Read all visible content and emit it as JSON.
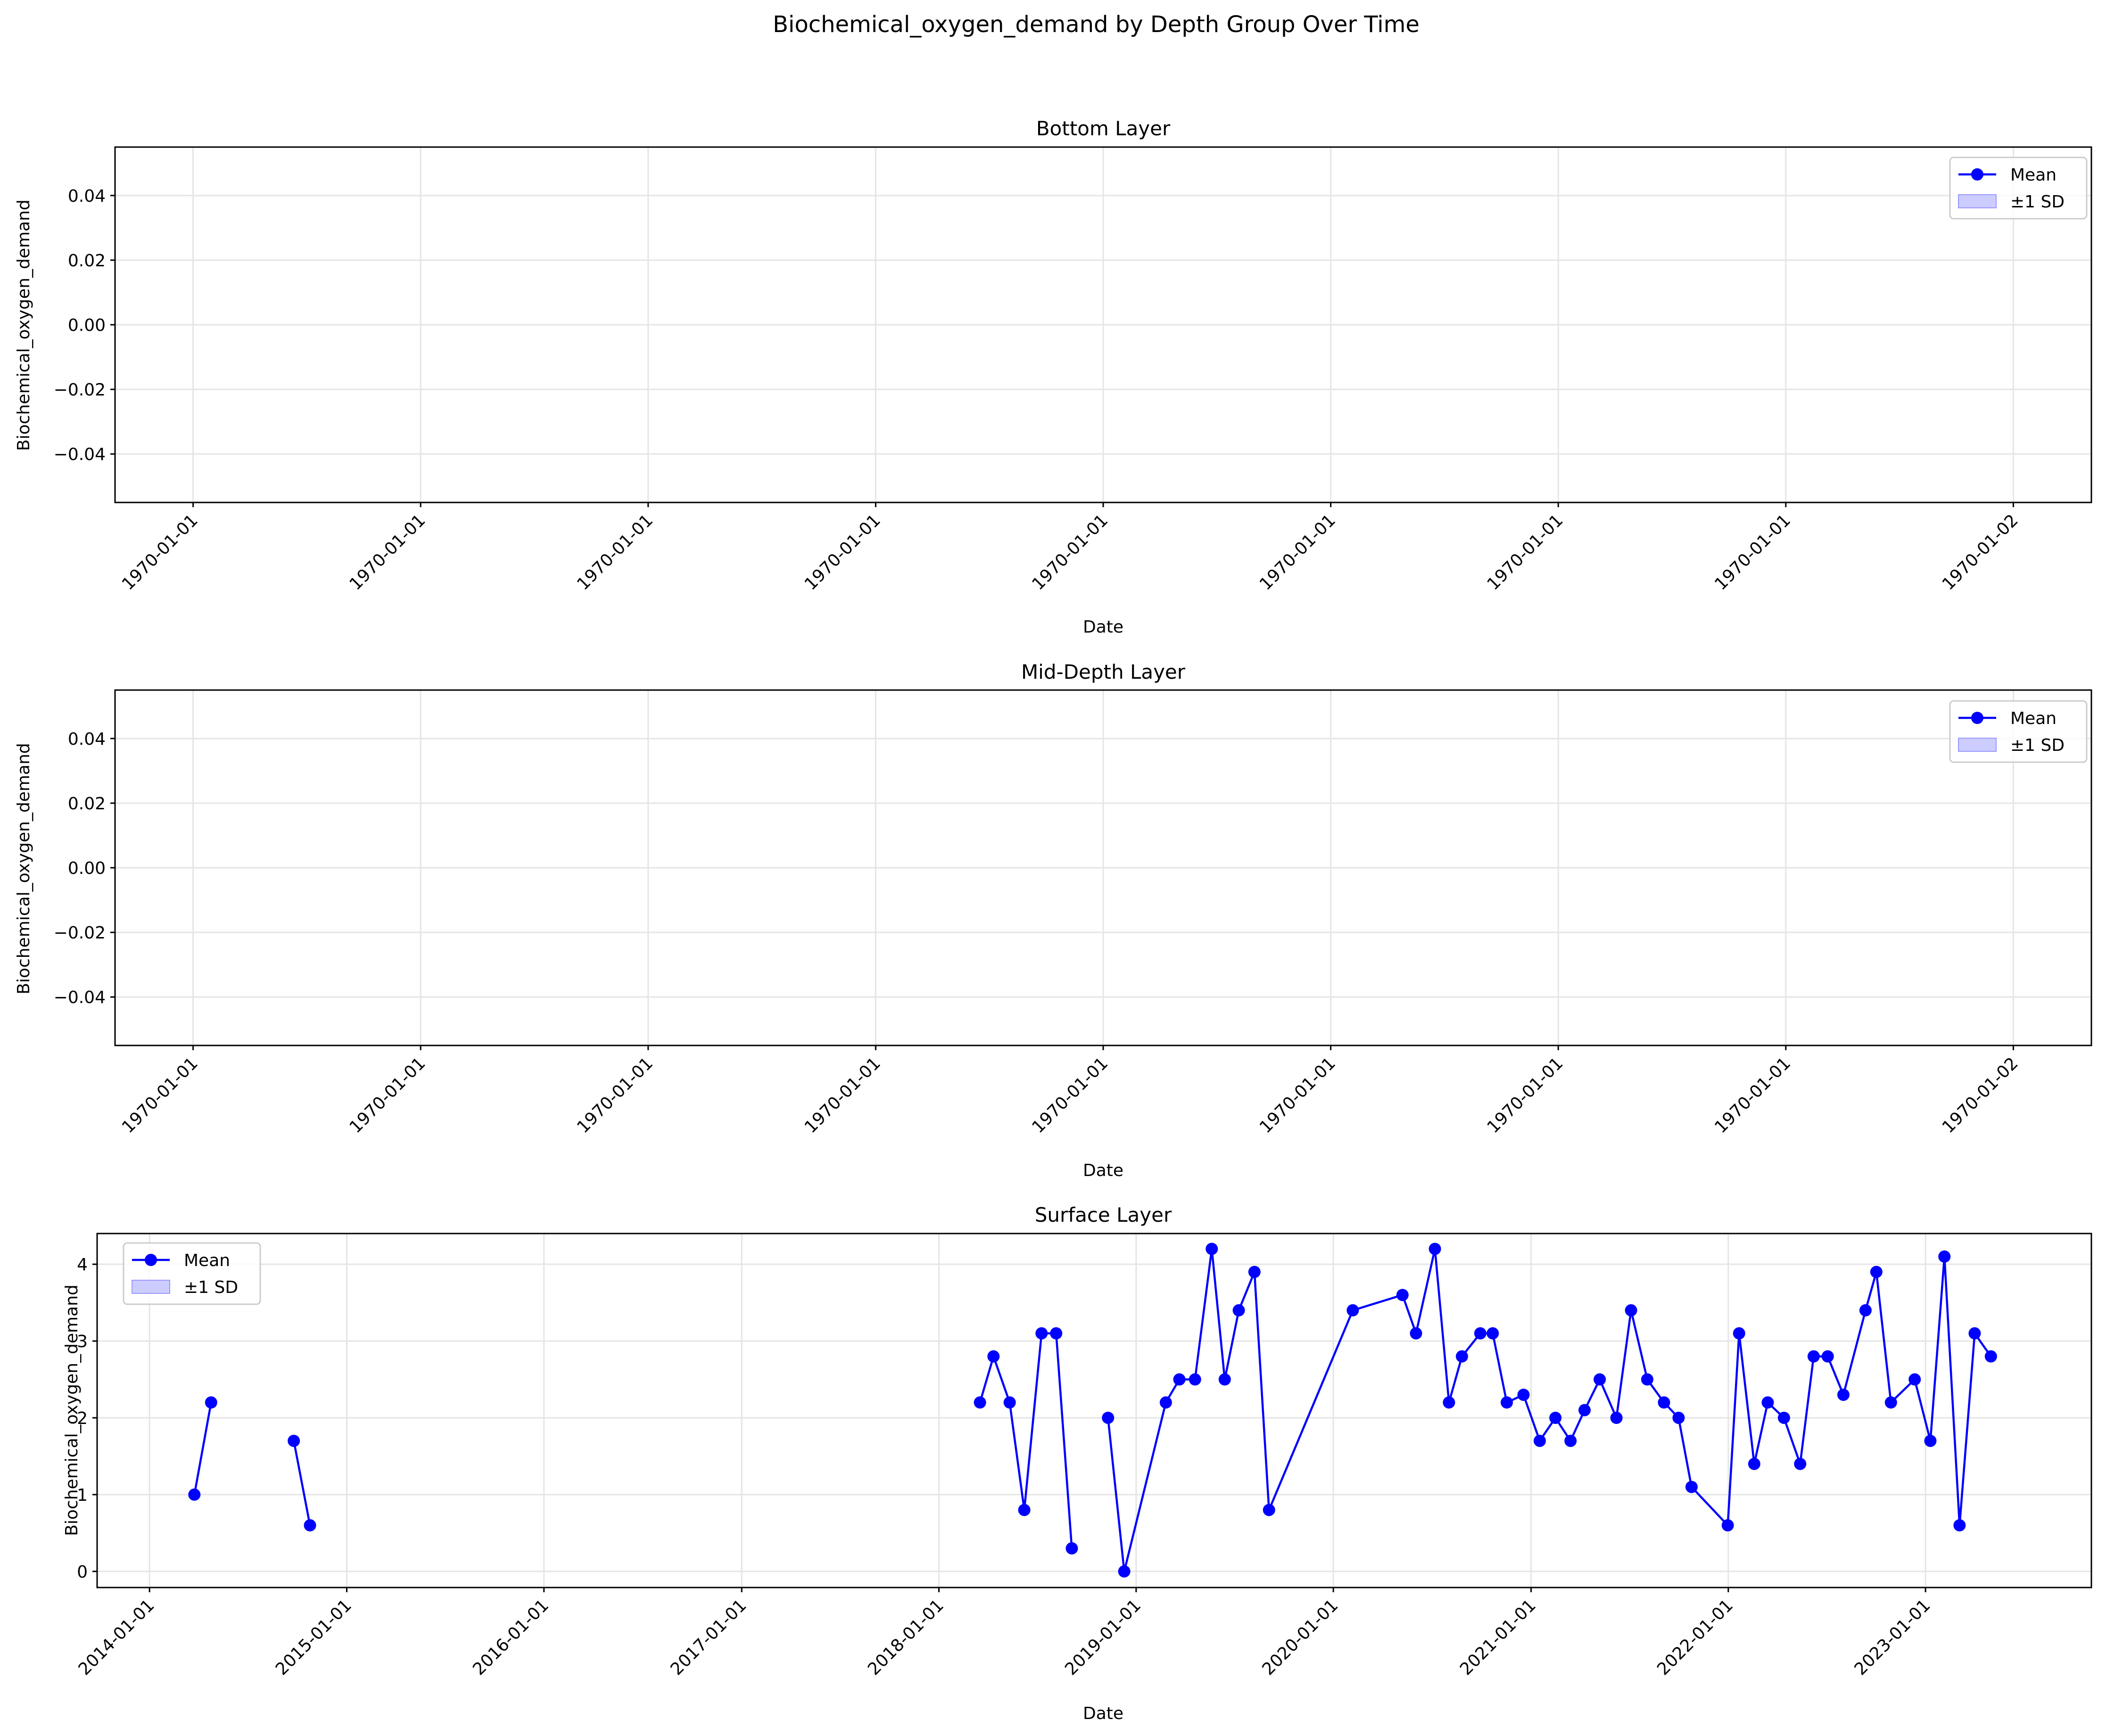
{
  "figure": {
    "suptitle": "Biochemical_oxygen_demand by Depth Group Over Time"
  },
  "colors": {
    "line": "#0000ff",
    "band": "#ccccff",
    "band_edge": "#9999ff",
    "grid": "#e5e5e5",
    "axis": "#000000"
  },
  "chart_data": [
    {
      "type": "line",
      "title": "Bottom Layer",
      "xlabel": "Date",
      "ylabel": "Biochemical_oxygen_demand",
      "x_ticklabels": [
        "1970-01-01",
        "1970-01-01",
        "1970-01-01",
        "1970-01-01",
        "1970-01-01",
        "1970-01-01",
        "1970-01-01",
        "1970-01-01",
        "1970-01-02"
      ],
      "yticks": [
        -0.04,
        -0.02,
        0.0,
        0.02,
        0.04
      ],
      "ytick_labels": [
        "−0.04",
        "−0.02",
        "0.00",
        "0.02",
        "0.04"
      ],
      "ylim": [
        -0.055,
        0.055
      ],
      "grid": true,
      "legend_position": "top-right",
      "legend": [
        "Mean",
        "±1 SD"
      ],
      "series": []
    },
    {
      "type": "line",
      "title": "Mid-Depth Layer",
      "xlabel": "Date",
      "ylabel": "Biochemical_oxygen_demand",
      "x_ticklabels": [
        "1970-01-01",
        "1970-01-01",
        "1970-01-01",
        "1970-01-01",
        "1970-01-01",
        "1970-01-01",
        "1970-01-01",
        "1970-01-01",
        "1970-01-02"
      ],
      "yticks": [
        -0.04,
        -0.02,
        0.0,
        0.02,
        0.04
      ],
      "ytick_labels": [
        "−0.04",
        "−0.02",
        "0.00",
        "0.02",
        "0.04"
      ],
      "ylim": [
        -0.055,
        0.055
      ],
      "grid": true,
      "legend_position": "top-right",
      "legend": [
        "Mean",
        "±1 SD"
      ],
      "series": []
    },
    {
      "type": "line",
      "title": "Surface Layer",
      "xlabel": "Date",
      "ylabel": "Biochemical_oxygen_demand",
      "x_ticklabels": [
        "2014-01-01",
        "2015-01-01",
        "2016-01-01",
        "2017-01-01",
        "2018-01-01",
        "2019-01-01",
        "2020-01-01",
        "2021-01-01",
        "2022-01-01",
        "2023-01-01"
      ],
      "xlim": [
        "2013-09-26",
        "2023-11-04"
      ],
      "yticks": [
        0,
        1,
        2,
        3,
        4
      ],
      "ytick_labels": [
        "0",
        "1",
        "2",
        "3",
        "4"
      ],
      "ylim": [
        -0.21,
        4.4
      ],
      "grid": true,
      "legend_position": "top-left",
      "legend": [
        "Mean",
        "±1 SD"
      ],
      "series": [
        {
          "name": "Mean",
          "segments": [
            [
              [
                "2014-03-25",
                1.0
              ],
              [
                "2014-04-25",
                2.2
              ]
            ],
            [
              [
                "2014-09-25",
                1.7
              ],
              [
                "2014-10-25",
                0.6
              ]
            ],
            [
              [
                "2018-03-18",
                2.2
              ],
              [
                "2018-04-12",
                2.8
              ],
              [
                "2018-05-12",
                2.2
              ],
              [
                "2018-06-08",
                0.8
              ],
              [
                "2018-07-10",
                3.1
              ],
              [
                "2018-08-06",
                3.1
              ],
              [
                "2018-09-04",
                0.3
              ]
            ],
            [
              [
                "2018-11-10",
                2.0
              ],
              [
                "2018-12-10",
                0.0
              ],
              [
                "2019-02-25",
                2.2
              ],
              [
                "2019-03-22",
                2.5
              ],
              [
                "2019-04-20",
                2.5
              ],
              [
                "2019-05-21",
                4.2
              ],
              [
                "2019-06-14",
                2.5
              ],
              [
                "2019-07-10",
                3.4
              ],
              [
                "2019-08-08",
                3.9
              ],
              [
                "2019-09-04",
                0.8
              ],
              [
                "2020-02-06",
                3.4
              ],
              [
                "2020-05-08",
                3.6
              ],
              [
                "2020-06-02",
                3.1
              ],
              [
                "2020-07-07",
                4.2
              ],
              [
                "2020-08-02",
                2.2
              ],
              [
                "2020-08-26",
                2.8
              ],
              [
                "2020-09-29",
                3.1
              ],
              [
                "2020-10-22",
                3.1
              ],
              [
                "2020-11-17",
                2.2
              ],
              [
                "2020-12-18",
                2.3
              ],
              [
                "2021-01-17",
                1.7
              ],
              [
                "2021-02-15",
                2.0
              ],
              [
                "2021-03-15",
                1.7
              ],
              [
                "2021-04-10",
                2.1
              ],
              [
                "2021-05-08",
                2.5
              ],
              [
                "2021-06-08",
                2.0
              ],
              [
                "2021-07-05",
                3.4
              ],
              [
                "2021-08-04",
                2.5
              ],
              [
                "2021-09-04",
                2.2
              ],
              [
                "2021-10-01",
                2.0
              ],
              [
                "2021-10-25",
                1.1
              ],
              [
                "2021-12-31",
                0.6
              ],
              [
                "2022-01-21",
                3.1
              ],
              [
                "2022-02-18",
                1.4
              ],
              [
                "2022-03-15",
                2.2
              ],
              [
                "2022-04-14",
                2.0
              ],
              [
                "2022-05-14",
                1.4
              ],
              [
                "2022-06-08",
                2.8
              ],
              [
                "2022-07-04",
                2.8
              ],
              [
                "2022-08-02",
                2.3
              ],
              [
                "2022-09-12",
                3.4
              ],
              [
                "2022-10-02",
                3.9
              ],
              [
                "2022-10-29",
                2.2
              ],
              [
                "2022-12-12",
                2.5
              ],
              [
                "2023-01-10",
                1.7
              ],
              [
                "2023-02-05",
                4.1
              ],
              [
                "2023-03-05",
                0.6
              ],
              [
                "2023-04-02",
                3.1
              ],
              [
                "2023-05-02",
                2.8
              ]
            ]
          ]
        }
      ]
    }
  ]
}
